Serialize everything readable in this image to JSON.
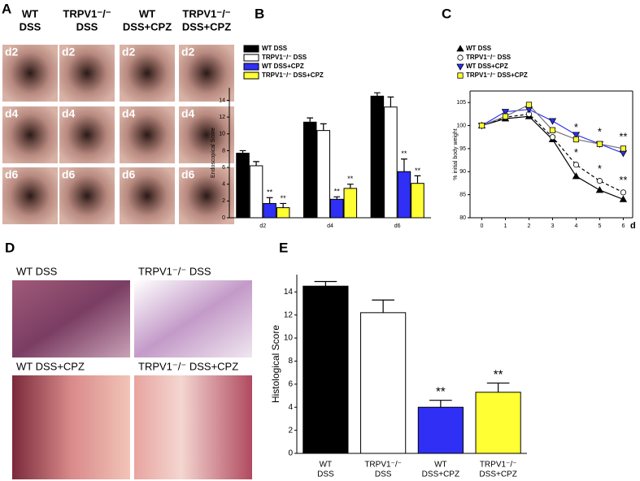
{
  "panels": {
    "A": {
      "label": "A",
      "columns": [
        [
          "WT",
          "DSS"
        ],
        [
          "TRPV1⁻/⁻",
          "DSS"
        ],
        [
          "WT",
          "DSS+CPZ"
        ],
        [
          "TRPV1⁻/⁻",
          "DSS+CPZ"
        ]
      ],
      "rows": [
        "d2",
        "d4",
        "d6"
      ]
    },
    "D": {
      "label": "D",
      "images": [
        "WT DSS",
        "TRPV1⁻/⁻ DSS",
        "WT DSS+CPZ",
        "TRPV1⁻/⁻ DSS+CPZ"
      ]
    }
  },
  "chart_data": [
    {
      "type": "bar",
      "panel_label": "B",
      "y_label": "Endoscopical Score",
      "categories": [
        "d2",
        "d4",
        "d6"
      ],
      "series": [
        {
          "name": "WT DSS",
          "color": "#000000",
          "values": [
            7.7,
            11.4,
            14.5
          ],
          "errors": [
            0.3,
            0.5,
            0.4
          ]
        },
        {
          "name": "TRPV1⁻/⁻ DSS",
          "color": "#ffffff",
          "values": [
            6.2,
            10.4,
            13.2
          ],
          "errors": [
            0.5,
            0.8,
            1.2
          ]
        },
        {
          "name": "WT DSS+CPZ",
          "color": "#2f2ff5",
          "values": [
            1.7,
            2.2,
            5.5
          ],
          "errors": [
            0.7,
            0.3,
            1.5
          ],
          "significance": [
            "**",
            "**",
            "**"
          ]
        },
        {
          "name": "TRPV1⁻/⁻ DSS+CPZ",
          "color": "#ffff33",
          "values": [
            1.2,
            3.5,
            4.1
          ],
          "errors": [
            0.5,
            0.5,
            0.9
          ],
          "significance": [
            "**",
            "**",
            "**"
          ]
        }
      ],
      "ylim": [
        0,
        15.5
      ],
      "yticks": [
        0,
        2,
        4,
        6,
        8,
        10,
        12,
        14
      ],
      "legend": "top-left"
    },
    {
      "type": "line",
      "panel_label": "C",
      "y_label": "% initial body weight",
      "x_label": "d",
      "x": [
        0,
        1,
        2,
        3,
        4,
        5,
        6
      ],
      "series": [
        {
          "name": "WT DSS",
          "color": "#000000",
          "line_color": "#000000",
          "linestyle": "solid",
          "marker": "triangle",
          "values": [
            100,
            101.5,
            102,
            97,
            89,
            86,
            84
          ]
        },
        {
          "name": "TRPV1⁻/⁻ DSS",
          "color": "#ffffff",
          "line_color": "#000000",
          "linestyle": "dashed",
          "marker": "circle",
          "values": [
            100,
            101.8,
            102.5,
            97.5,
            91.5,
            88,
            85.5
          ],
          "significance": [
            null,
            null,
            null,
            null,
            "*",
            "*",
            "**"
          ]
        },
        {
          "name": "WT DSS+CPZ",
          "color": "#2f2ff5",
          "line_color": "#2f2ff5",
          "linestyle": "solid",
          "marker": "triangle-down",
          "values": [
            100,
            103,
            103.5,
            101,
            98,
            96,
            94
          ]
        },
        {
          "name": "TRPV1⁻/⁻ DSS+CPZ",
          "color": "#ffff33",
          "line_color": "#777777",
          "linestyle": "solid",
          "marker": "square",
          "values": [
            100,
            102,
            104.5,
            99,
            97,
            96,
            95
          ],
          "significance": [
            null,
            null,
            null,
            null,
            "*",
            "*",
            "**"
          ]
        }
      ],
      "xlim": [
        -0.5,
        6.4
      ],
      "xticks": [
        0,
        1,
        2,
        3,
        4,
        5,
        6
      ],
      "ylim": [
        80,
        107.5
      ],
      "yticks": [
        80,
        85,
        90,
        95,
        100,
        105
      ],
      "legend": "top-left"
    },
    {
      "type": "bar",
      "panel_label": "E",
      "y_label": "Histological Score",
      "categories": [
        [
          "WT",
          "DSS"
        ],
        [
          "TRPV1⁻/⁻",
          "DSS"
        ],
        [
          "WT",
          "DSS+CPZ"
        ],
        [
          "TRPV1⁻/⁻",
          "DSS+CPZ"
        ]
      ],
      "values": [
        14.5,
        12.2,
        4.0,
        5.3
      ],
      "errors": [
        0.4,
        1.1,
        0.6,
        0.8
      ],
      "colors": [
        "#000000",
        "#ffffff",
        "#2f2ff5",
        "#ffff33"
      ],
      "significance": [
        null,
        null,
        "**",
        "**"
      ],
      "ylim": [
        0,
        15.5
      ],
      "yticks": [
        0,
        2,
        4,
        6,
        8,
        10,
        12,
        14
      ]
    }
  ]
}
